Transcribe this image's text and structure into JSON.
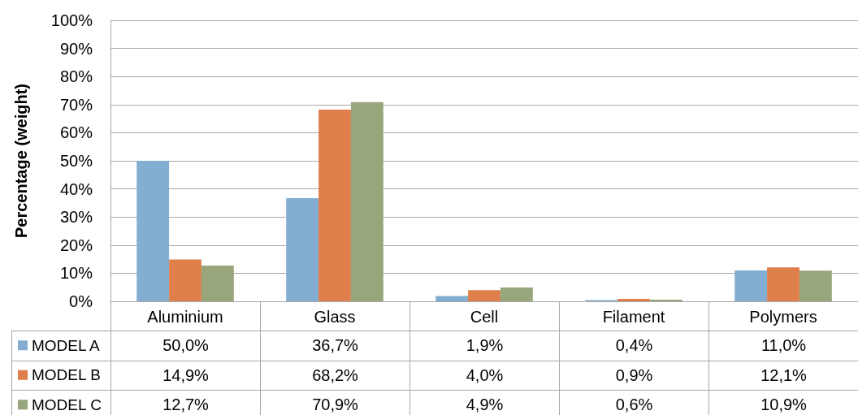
{
  "chart_data": {
    "type": "bar",
    "ylabel": "Percentage (weight)",
    "categories": [
      "Aluminium",
      "Glass",
      "Cell",
      "Filament",
      "Polymers"
    ],
    "series": [
      {
        "name": "MODEL A",
        "color": "#84aed1",
        "values": [
          50.0,
          36.7,
          1.9,
          0.4,
          11.0
        ],
        "value_labels": [
          "50,0%",
          "36,7%",
          "1,9%",
          "0,4%",
          "11,0%"
        ]
      },
      {
        "name": "MODEL B",
        "color": "#df7f4c",
        "values": [
          14.9,
          68.2,
          4.0,
          0.9,
          12.1
        ],
        "value_labels": [
          "14,9%",
          "68,2%",
          "4,0%",
          "0,9%",
          "12,1%"
        ]
      },
      {
        "name": "MODEL C",
        "color": "#98a67b",
        "values": [
          12.7,
          70.9,
          4.9,
          0.6,
          10.9
        ],
        "value_labels": [
          "12,7%",
          "70,9%",
          "4,9%",
          "0,6%",
          "10,9%"
        ]
      }
    ],
    "ylim": [
      0,
      100
    ],
    "yticks": [
      {
        "value": 0,
        "label": "0%"
      },
      {
        "value": 10,
        "label": "10%"
      },
      {
        "value": 20,
        "label": "20%"
      },
      {
        "value": 30,
        "label": "30%"
      },
      {
        "value": 40,
        "label": "40%"
      },
      {
        "value": 50,
        "label": "50%"
      },
      {
        "value": 60,
        "label": "60%"
      },
      {
        "value": 70,
        "label": "70%"
      },
      {
        "value": 80,
        "label": "80%"
      },
      {
        "value": 90,
        "label": "90%"
      },
      {
        "value": 100,
        "label": "100%"
      }
    ],
    "grid": "y",
    "legend": "bottom left"
  }
}
